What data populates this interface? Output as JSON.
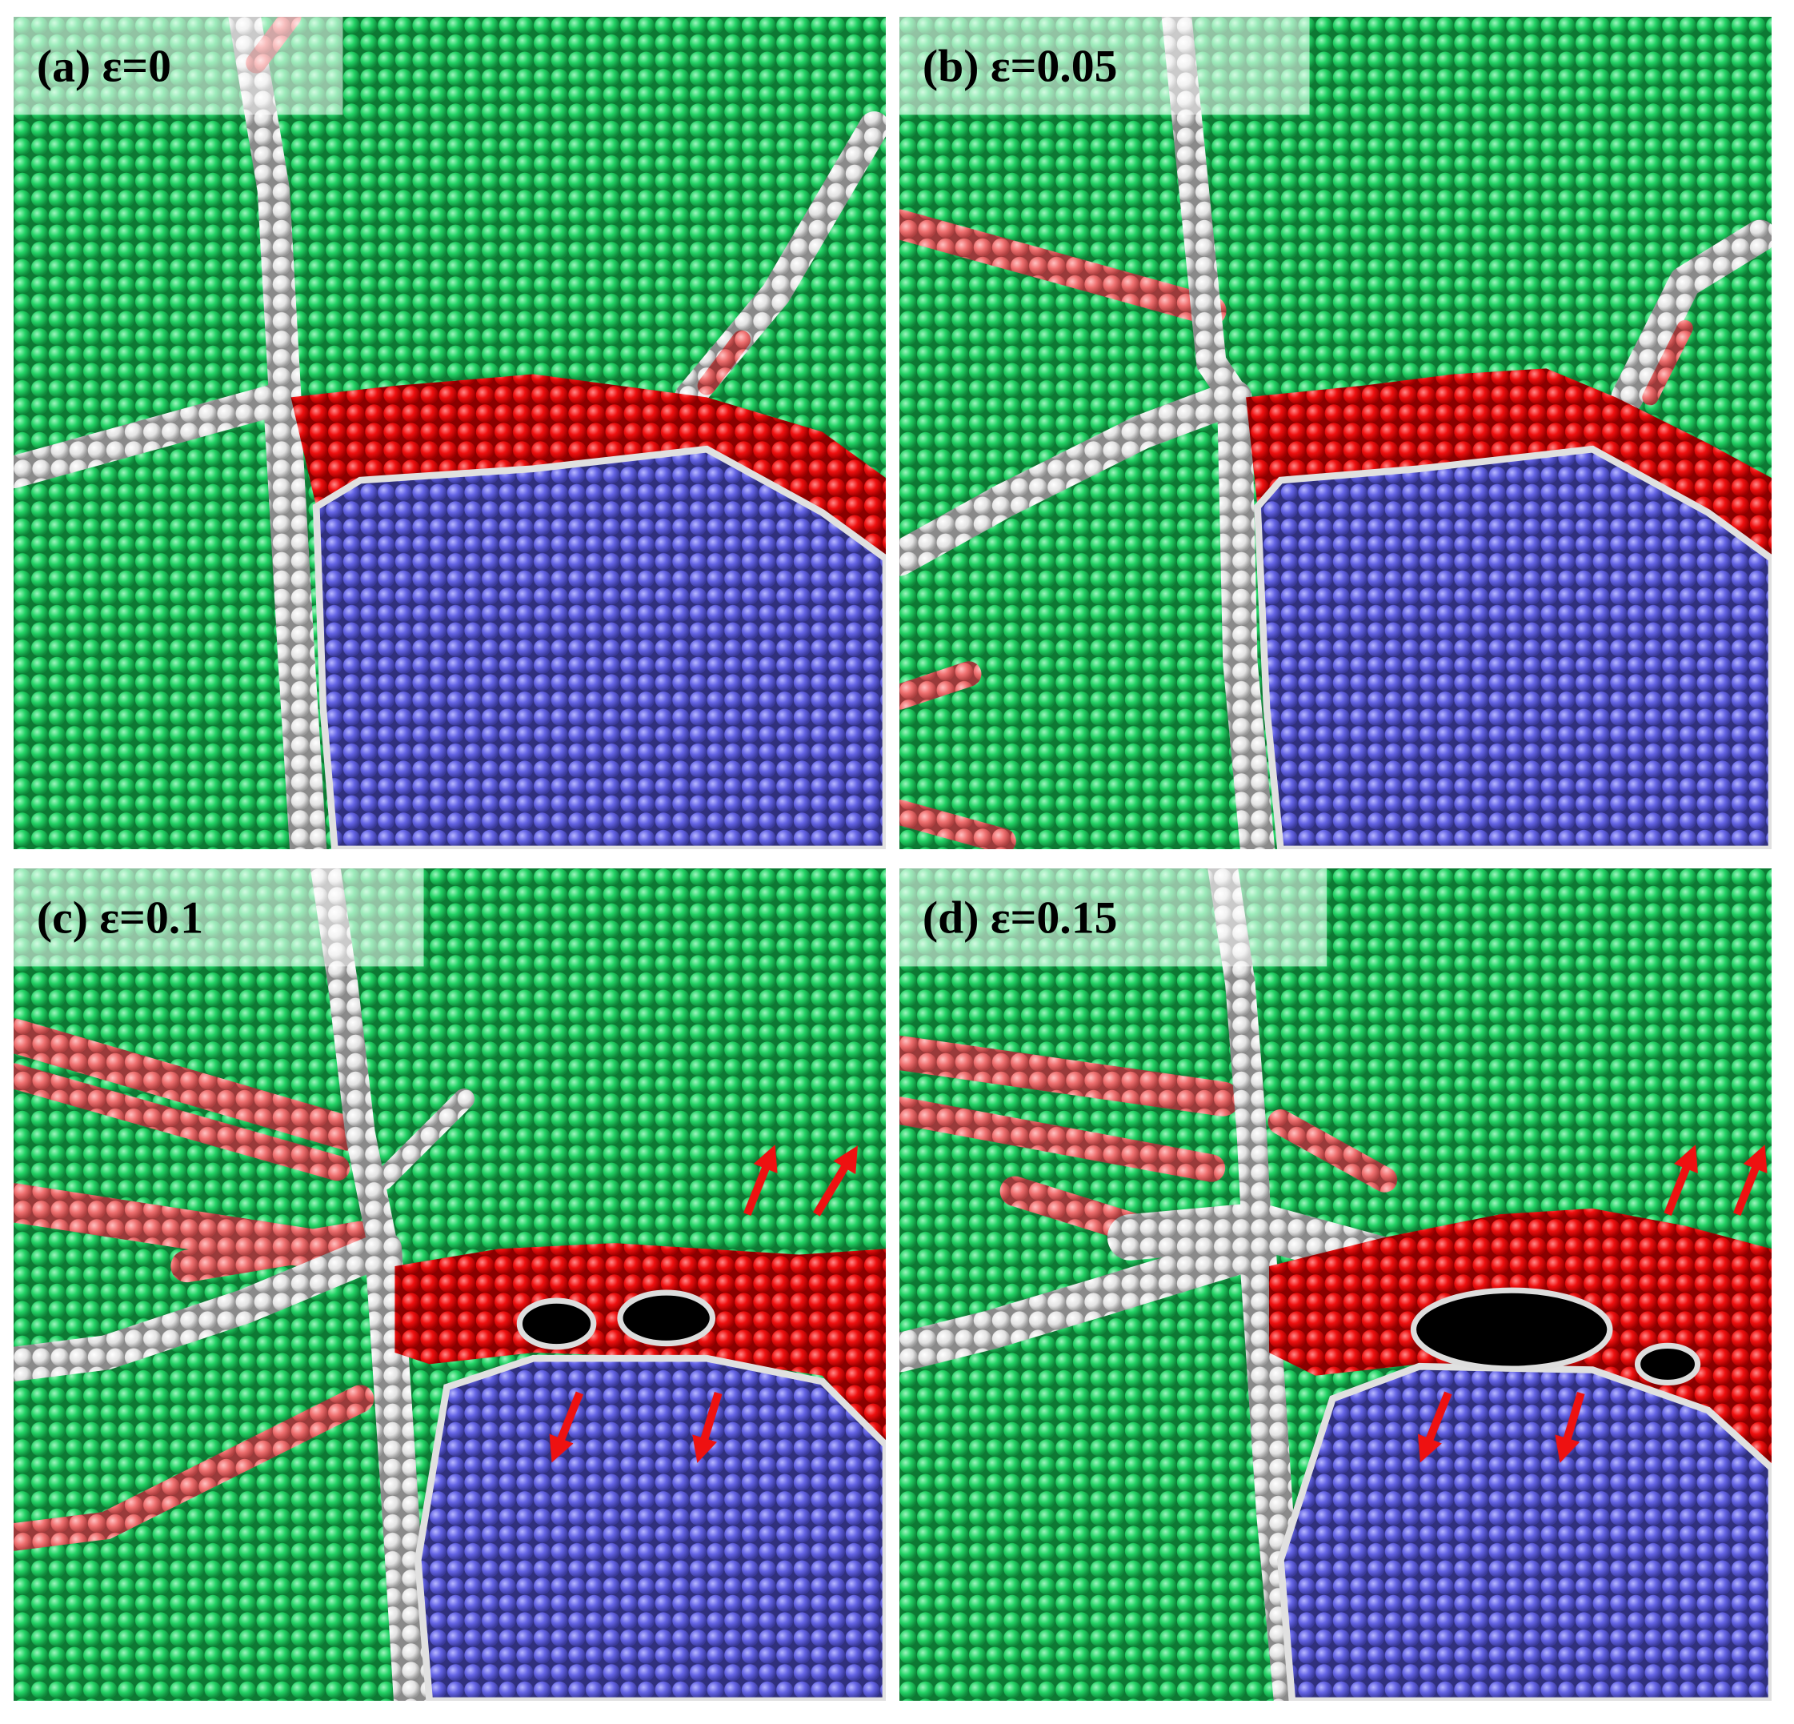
{
  "panels": [
    {
      "label": "(a) ε=0"
    },
    {
      "label": "(b) ε=0.05"
    },
    {
      "label": "(c) ε=0.1"
    },
    {
      "label": "(d) ε=0.15"
    }
  ]
}
